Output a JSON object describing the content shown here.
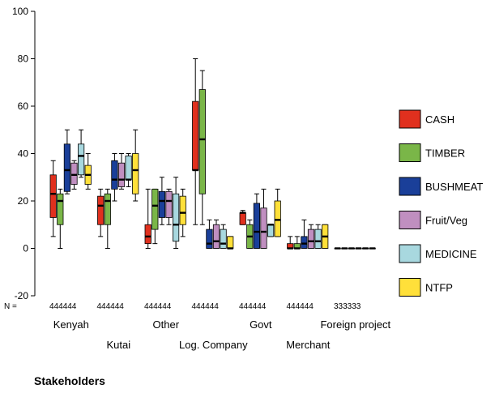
{
  "chart_data": {
    "type": "boxplot",
    "xlabel": "Stakeholders",
    "ylabel": "",
    "ylim": [
      -20,
      100
    ],
    "yticks": [
      -20,
      0,
      20,
      40,
      60,
      80,
      100
    ],
    "n_label": "N =",
    "grid": false,
    "legend_position": "right",
    "categories": [
      "Kenyah",
      "Kutai",
      "Other",
      "Log. Company",
      "Govt",
      "Merchant",
      "Foreign project"
    ],
    "n_counts": [
      "444444",
      "444444",
      "444444",
      "444444",
      "444444",
      "444444",
      "333333"
    ],
    "series": [
      {
        "name": "CASH",
        "color": "#e0301e",
        "boxes": [
          {
            "min": 5,
            "q1": 13,
            "median": 23,
            "q3": 31,
            "max": 37
          },
          {
            "min": 5,
            "q1": 10,
            "median": 18,
            "q3": 22,
            "max": 25
          },
          {
            "min": 0,
            "q1": 2,
            "median": 5,
            "q3": 10,
            "max": 25
          },
          {
            "min": 10,
            "q1": 33,
            "median": 33,
            "q3": 62,
            "max": 80
          },
          {
            "min": 10,
            "q1": 10,
            "median": 15,
            "q3": 15,
            "max": 16
          },
          {
            "min": 0,
            "q1": 0,
            "median": 0,
            "q3": 2,
            "max": 5
          },
          {
            "min": 0,
            "q1": 0,
            "median": 0,
            "q3": 0,
            "max": 0
          }
        ]
      },
      {
        "name": "TIMBER",
        "color": "#7ab648",
        "boxes": [
          {
            "min": 0,
            "q1": 10,
            "median": 20,
            "q3": 23,
            "max": 25
          },
          {
            "min": 0,
            "q1": 10,
            "median": 20,
            "q3": 23,
            "max": 25
          },
          {
            "min": 2,
            "q1": 8,
            "median": 18,
            "q3": 25,
            "max": 25
          },
          {
            "min": 10,
            "q1": 23,
            "median": 46,
            "q3": 67,
            "max": 75
          },
          {
            "min": 0,
            "q1": 0,
            "median": 5,
            "q3": 10,
            "max": 12
          },
          {
            "min": 0,
            "q1": 0,
            "median": 0,
            "q3": 2,
            "max": 5
          },
          {
            "min": 0,
            "q1": 0,
            "median": 0,
            "q3": 0,
            "max": 0
          }
        ]
      },
      {
        "name": "BUSHMEAT",
        "color": "#1a3f99",
        "boxes": [
          {
            "min": 23,
            "q1": 24,
            "median": 33,
            "q3": 44,
            "max": 50
          },
          {
            "min": 20,
            "q1": 25,
            "median": 29,
            "q3": 37,
            "max": 40
          },
          {
            "min": 10,
            "q1": 13,
            "median": 20,
            "q3": 24,
            "max": 30
          },
          {
            "min": 0,
            "q1": 0,
            "median": 2,
            "q3": 8,
            "max": 12
          },
          {
            "min": 0,
            "q1": 0,
            "median": 7,
            "q3": 19,
            "max": 23
          },
          {
            "min": 0,
            "q1": 0,
            "median": 2,
            "q3": 5,
            "max": 12
          },
          {
            "min": 0,
            "q1": 0,
            "median": 0,
            "q3": 0,
            "max": 0
          }
        ]
      },
      {
        "name": "Fruit/Veg",
        "color": "#c08fc0",
        "boxes": [
          {
            "min": 25,
            "q1": 27,
            "median": 31,
            "q3": 36,
            "max": 37
          },
          {
            "min": 25,
            "q1": 26,
            "median": 29,
            "q3": 36,
            "max": 40
          },
          {
            "min": 10,
            "q1": 13,
            "median": 20,
            "q3": 24,
            "max": 25
          },
          {
            "min": 0,
            "q1": 0,
            "median": 3,
            "q3": 10,
            "max": 12
          },
          {
            "min": 0,
            "q1": 0,
            "median": 7,
            "q3": 17,
            "max": 25
          },
          {
            "min": 0,
            "q1": 0,
            "median": 3,
            "q3": 8,
            "max": 10
          },
          {
            "min": 0,
            "q1": 0,
            "median": 0,
            "q3": 0,
            "max": 0
          }
        ]
      },
      {
        "name": "MEDICINE",
        "color": "#a8d8df",
        "boxes": [
          {
            "min": 30,
            "q1": 31,
            "median": 39,
            "q3": 44,
            "max": 50
          },
          {
            "min": 26,
            "q1": 29,
            "median": 29,
            "q3": 39,
            "max": 40
          },
          {
            "min": 0,
            "q1": 3,
            "median": 10,
            "q3": 23,
            "max": 30
          },
          {
            "min": 0,
            "q1": 0,
            "median": 2,
            "q3": 8,
            "max": 10
          },
          {
            "min": 5,
            "q1": 5,
            "median": 10,
            "q3": 10,
            "max": 10
          },
          {
            "min": 0,
            "q1": 0,
            "median": 3,
            "q3": 8,
            "max": 10
          },
          {
            "min": 0,
            "q1": 0,
            "median": 0,
            "q3": 0,
            "max": 0
          }
        ]
      },
      {
        "name": "NTFP",
        "color": "#ffe03a",
        "boxes": [
          {
            "min": 25,
            "q1": 27,
            "median": 31,
            "q3": 35,
            "max": 40
          },
          {
            "min": 20,
            "q1": 23,
            "median": 33,
            "q3": 40,
            "max": 50
          },
          {
            "min": 5,
            "q1": 10,
            "median": 15,
            "q3": 22,
            "max": 25
          },
          {
            "min": 0,
            "q1": 0,
            "median": 0,
            "q3": 5,
            "max": 5
          },
          {
            "min": 5,
            "q1": 5,
            "median": 12,
            "q3": 20,
            "max": 25
          },
          {
            "min": 0,
            "q1": 0,
            "median": 5,
            "q3": 10,
            "max": 10
          },
          {
            "min": 0,
            "q1": 0,
            "median": 0,
            "q3": 0,
            "max": 0
          }
        ]
      }
    ]
  }
}
